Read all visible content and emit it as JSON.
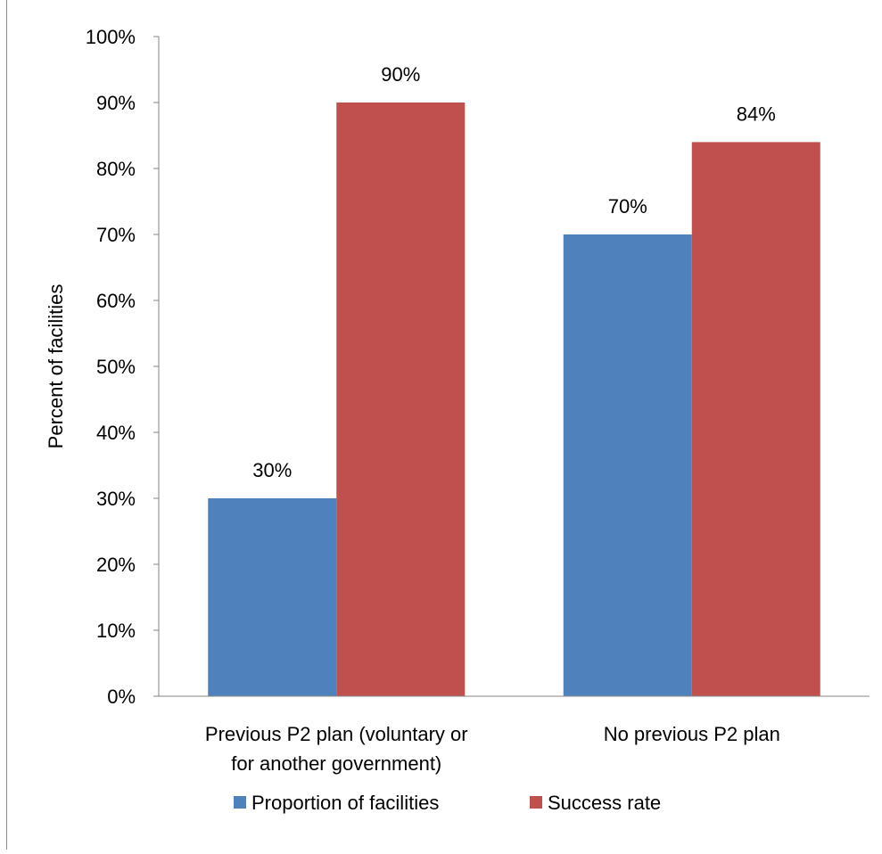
{
  "chart_data": {
    "type": "bar",
    "title": "",
    "ylabel": "Percent of facilities",
    "xlabel": "",
    "ylim": [
      0,
      100
    ],
    "yticks": [
      "0%",
      "10%",
      "20%",
      "30%",
      "40%",
      "50%",
      "60%",
      "70%",
      "80%",
      "90%",
      "100%"
    ],
    "categories": [
      [
        "Previous P2 plan (voluntary or",
        "for another government)"
      ],
      [
        "No previous P2 plan"
      ]
    ],
    "series": [
      {
        "name": "Proportion of facilities",
        "color": "#4F81BD",
        "values": [
          30,
          70
        ],
        "labels": [
          "30%",
          "70%"
        ]
      },
      {
        "name": "Success rate",
        "color": "#C0504D",
        "values": [
          90,
          84
        ],
        "labels": [
          "90%",
          "84%"
        ]
      }
    ],
    "grid": false,
    "legend_position": "bottom"
  }
}
